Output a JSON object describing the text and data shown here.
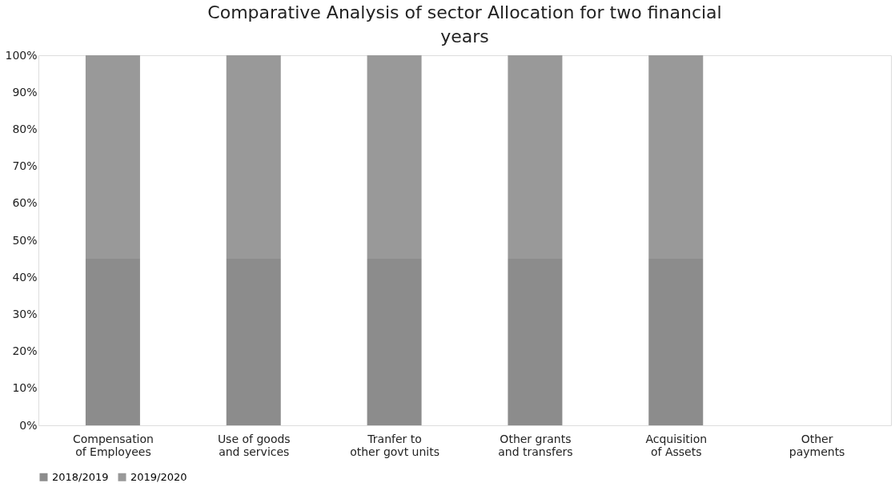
{
  "chart_data": {
    "type": "bar",
    "title": "Comparative Analysis of sector Allocation for two financial years",
    "categories": [
      "Compensation of Employees",
      "Use of goods and services",
      "Tranfer to other govt units",
      "Other grants and transfers",
      "Acquisition of Assets",
      "Other payments"
    ],
    "stacked": true,
    "series": [
      {
        "name": "2018/2019",
        "color": "#8c8c8c",
        "values": [
          45,
          45,
          45,
          45,
          45,
          null
        ]
      },
      {
        "name": "2019/2020",
        "color": "#999999",
        "values": [
          55,
          55,
          55,
          55,
          55,
          null
        ]
      }
    ],
    "ylim": [
      0,
      100
    ],
    "yticks": [
      {
        "value": 0,
        "label": "0%"
      },
      {
        "value": 10,
        "label": "10%"
      },
      {
        "value": 20,
        "label": "20%"
      },
      {
        "value": 30,
        "label": "30%"
      },
      {
        "value": 40,
        "label": "40%"
      },
      {
        "value": 50,
        "label": "50%"
      },
      {
        "value": 60,
        "label": "60%"
      },
      {
        "value": 70,
        "label": "70%"
      },
      {
        "value": 80,
        "label": "80%"
      },
      {
        "value": 90,
        "label": "90%"
      },
      {
        "value": 100,
        "label": "100%"
      }
    ],
    "grid": false,
    "legend": "bottom"
  }
}
